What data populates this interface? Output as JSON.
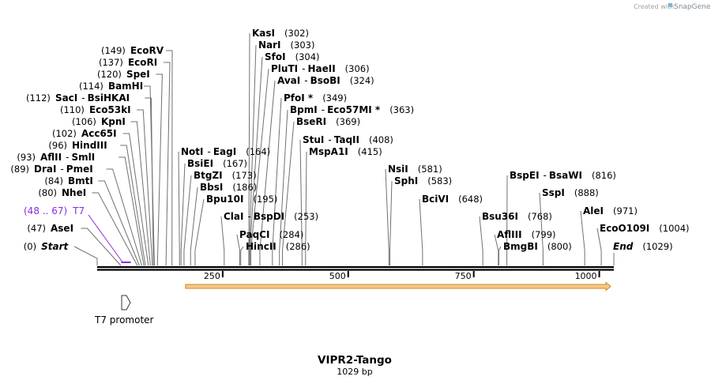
{
  "credit": {
    "prefix": "Created with",
    "brand": "SnapGene"
  },
  "plasmid": {
    "name": "VIPR2-Tango",
    "length": 1029,
    "length_label": "1029 bp"
  },
  "ticks": [
    250,
    500,
    750,
    1000
  ],
  "colors": {
    "accent": "#8a2be2",
    "orf_fill": "#f5c88a",
    "orf_stroke": "#d08a20",
    "line": "#707070"
  },
  "features": [
    {
      "name": "T7",
      "range_label": "(48 .. 67)",
      "start": 48,
      "end": 67,
      "color": "#8a2be2"
    },
    {
      "name": "T7 promoter",
      "start": 48,
      "end": 67
    }
  ],
  "orf": {
    "start": 176,
    "end": 1029,
    "direction": "forward"
  },
  "sites": [
    {
      "label": "Start",
      "pos": 0,
      "pos_label": "(0)",
      "italic": true
    },
    {
      "label": "AseI",
      "pos": 47,
      "pos_label": "(47)"
    },
    {
      "label": "NheI",
      "pos": 80,
      "pos_label": "(80)"
    },
    {
      "label": "BmtI",
      "pos": 84,
      "pos_label": "(84)"
    },
    {
      "label": "DraI",
      "label2": "PmeI",
      "pos": 89,
      "pos_label": "(89)"
    },
    {
      "label": "AflII",
      "label2": "SmlI",
      "pos": 93,
      "pos_label": "(93)"
    },
    {
      "label": "HindIII",
      "pos": 96,
      "pos_label": "(96)"
    },
    {
      "label": "Acc65I",
      "pos": 102,
      "pos_label": "(102)"
    },
    {
      "label": "KpnI",
      "pos": 106,
      "pos_label": "(106)"
    },
    {
      "label": "Eco53kI",
      "pos": 110,
      "pos_label": "(110)"
    },
    {
      "label": "SacI",
      "label2": "BsiHKAI",
      "pos": 112,
      "pos_label": "(112)"
    },
    {
      "label": "BamHI",
      "pos": 114,
      "pos_label": "(114)"
    },
    {
      "label": "SpeI",
      "pos": 120,
      "pos_label": "(120)"
    },
    {
      "label": "EcoRI",
      "pos": 137,
      "pos_label": "(137)"
    },
    {
      "label": "EcoRV",
      "pos": 149,
      "pos_label": "(149)"
    },
    {
      "label": "KasI",
      "pos": 302,
      "pos_label": "(302)"
    },
    {
      "label": "NarI",
      "pos": 303,
      "pos_label": "(303)"
    },
    {
      "label": "SfoI",
      "pos": 304,
      "pos_label": "(304)"
    },
    {
      "label": "PluTI",
      "label2": "HaeII",
      "pos": 306,
      "pos_label": "(306)"
    },
    {
      "label": "AvaI",
      "label2": "BsoBI",
      "pos": 324,
      "pos_label": "(324)"
    },
    {
      "label": "PfoI *",
      "pos": 349,
      "pos_label": "(349)"
    },
    {
      "label": "BpmI",
      "label2": "Eco57MI *",
      "pos": 363,
      "pos_label": "(363)"
    },
    {
      "label": "BseRI",
      "pos": 369,
      "pos_label": "(369)"
    },
    {
      "label": "StuI",
      "label2": "TaqII",
      "pos": 408,
      "pos_label": "(408)"
    },
    {
      "label": "MspA1I",
      "pos": 415,
      "pos_label": "(415)"
    },
    {
      "label": "NotI",
      "label2": "EagI",
      "pos": 164,
      "pos_label": "(164)"
    },
    {
      "label": "BsiEI",
      "pos": 167,
      "pos_label": "(167)"
    },
    {
      "label": "BtgZI",
      "pos": 173,
      "pos_label": "(173)"
    },
    {
      "label": "BbsI",
      "pos": 186,
      "pos_label": "(186)"
    },
    {
      "label": "Bpu10I",
      "pos": 195,
      "pos_label": "(195)"
    },
    {
      "label": "ClaI",
      "label2": "BspDI",
      "pos": 253,
      "pos_label": "(253)"
    },
    {
      "label": "PaqCI",
      "pos": 284,
      "pos_label": "(284)"
    },
    {
      "label": "HincII",
      "pos": 286,
      "pos_label": "(286)"
    },
    {
      "label": "NsiI",
      "pos": 581,
      "pos_label": "(581)"
    },
    {
      "label": "SphI",
      "pos": 583,
      "pos_label": "(583)"
    },
    {
      "label": "BciVI",
      "pos": 648,
      "pos_label": "(648)"
    },
    {
      "label": "BspEI",
      "label2": "BsaWI",
      "pos": 816,
      "pos_label": "(816)"
    },
    {
      "label": "SspI",
      "pos": 888,
      "pos_label": "(888)"
    },
    {
      "label": "Bsu36I",
      "pos": 768,
      "pos_label": "(768)"
    },
    {
      "label": "AflIII",
      "pos": 799,
      "pos_label": "(799)"
    },
    {
      "label": "BmgBI",
      "pos": 800,
      "pos_label": "(800)"
    },
    {
      "label": "AleI",
      "pos": 971,
      "pos_label": "(971)"
    },
    {
      "label": "EcoO109I",
      "pos": 1004,
      "pos_label": "(1004)"
    },
    {
      "label": "End",
      "pos": 1029,
      "pos_label": "(1029)",
      "italic": true
    }
  ]
}
